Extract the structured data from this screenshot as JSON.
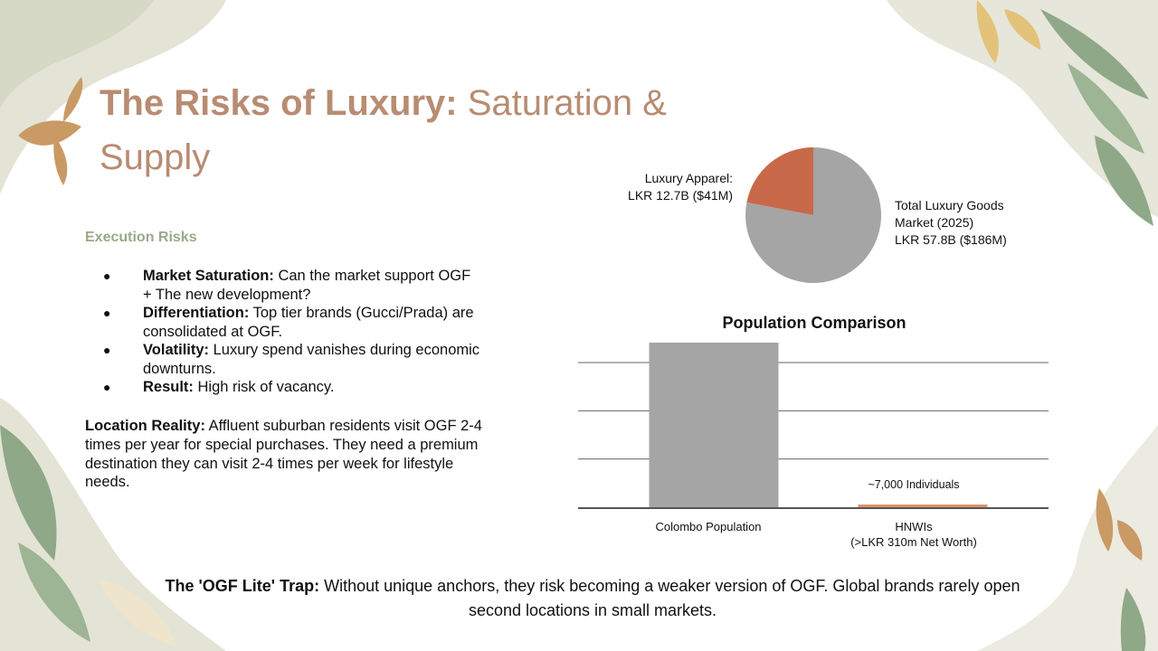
{
  "slide": {
    "title_bold": "The Risks of Luxury:",
    "title_rest": " Saturation & Supply",
    "section_heading": "Execution Risks",
    "risks": [
      {
        "term": "Market Saturation:",
        "text": " Can the market support OGF + The new development?"
      },
      {
        "term": "Differentiation:",
        "text": " Top tier brands (Gucci/Prada) are consolidated at OGF."
      },
      {
        "term": "Volatility:",
        "text": " Luxury spend vanishes during economic downturns."
      },
      {
        "term": "Result:",
        "text": " High risk of vacancy."
      }
    ],
    "location": {
      "term": "Location Reality:",
      "text": " Affluent suburban residents visit OGF 2-4 times per year for special purchases. They need a premium destination they can visit 2-4 times per week for lifestyle needs."
    },
    "footer": {
      "term": "The 'OGF Lite' Trap:",
      "text": " Without unique anchors, they risk becoming a weaker version of OGF. Global brands rarely open second locations in small markets."
    },
    "colors": {
      "title": "#b88c72",
      "section": "#9aa889",
      "pie_total": "#a5a5a5",
      "pie_apparel": "#c8694a",
      "bar": "#a5a5a5",
      "bar_accent": "#e0916c"
    }
  },
  "chart_data": [
    {
      "type": "pie",
      "slices": [
        {
          "label_line1": "Total Luxury Goods",
          "label_line2": "Market (2025)",
          "label_line3": "LKR 57.8B ($186M)",
          "value": 45.1
        },
        {
          "label_line1": "Luxury Apparel:",
          "label_line2": "LKR 12.7B ($41M)",
          "value": 12.7
        }
      ]
    },
    {
      "type": "bar",
      "title": "Population Comparison",
      "categories": [
        {
          "line1": "Colombo Population",
          "line2": ""
        },
        {
          "line1": "HNWIs",
          "line2": "(>LKR 310m Net Worth)"
        }
      ],
      "values": [
        2300000,
        7000
      ],
      "data_labels": [
        "",
        "~7,000 Individuals"
      ],
      "ylim": [
        0,
        2400000
      ],
      "grid": true,
      "gridlines": 3
    }
  ]
}
